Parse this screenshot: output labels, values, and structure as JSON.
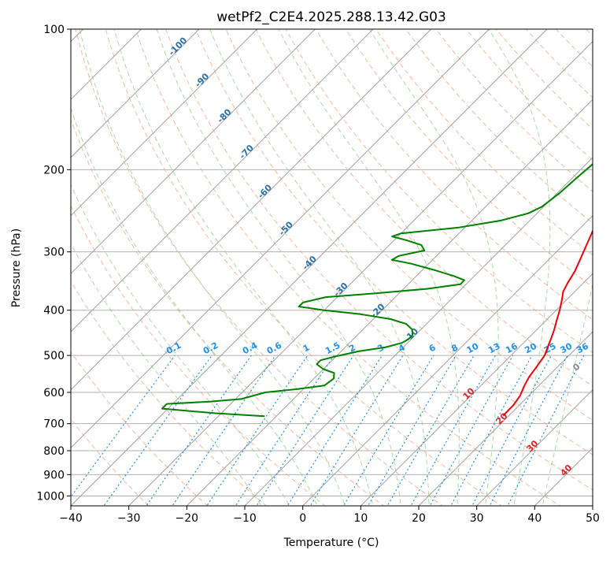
{
  "chart_data": {
    "type": "line",
    "subtype": "skew-T log-P diagram",
    "title": "wetPf2_C2E4.2025.288.13.42.G03",
    "xlabel": "Temperature (°C)",
    "ylabel": "Pressure (hPa)",
    "xlim": [
      -40,
      50
    ],
    "ylim": [
      1050,
      100
    ],
    "x_ticks": [
      -40,
      -30,
      -20,
      -10,
      0,
      10,
      20,
      30,
      40,
      50
    ],
    "x_tick_labels": [
      "−40",
      "−30",
      "−20",
      "−10",
      "0",
      "10",
      "20",
      "30",
      "40",
      "50"
    ],
    "y_ticks": [
      100,
      200,
      300,
      400,
      500,
      600,
      700,
      800,
      900,
      1000
    ],
    "y_tick_labels": [
      "100",
      "200",
      "300",
      "400",
      "500",
      "600",
      "700",
      "800",
      "900",
      "1000"
    ],
    "grid": true,
    "colors": {
      "temperature": "#e8000b",
      "dewpoint": "#008000",
      "isotherm": "#a0a0a0",
      "dry_adiabat": "#f4a582",
      "moist_adiabat": "#8fc98f",
      "mixing_ratio": "#1f8fe6",
      "isotherm_label": "#2a6fa8",
      "wet_bulb_label": "#d62728",
      "zero_label": "#8c8c8c"
    },
    "series": [
      {
        "name": "Temperature",
        "color": "#e8000b",
        "points": [
          {
            "p": 673,
            "t": 19.0
          },
          {
            "p": 640,
            "t": 19.0
          },
          {
            "p": 610,
            "t": 18.5
          },
          {
            "p": 580,
            "t": 17.5
          },
          {
            "p": 555,
            "t": 16.8
          },
          {
            "p": 530,
            "t": 16.4
          },
          {
            "p": 500,
            "t": 15.8
          },
          {
            "p": 480,
            "t": 14.9
          },
          {
            "p": 460,
            "t": 14.0
          },
          {
            "p": 440,
            "t": 13.0
          },
          {
            "p": 420,
            "t": 11.8
          },
          {
            "p": 400,
            "t": 10.6
          },
          {
            "p": 380,
            "t": 9.2
          },
          {
            "p": 365,
            "t": 8.0
          },
          {
            "p": 350,
            "t": 7.3
          },
          {
            "p": 330,
            "t": 6.5
          },
          {
            "p": 310,
            "t": 5.3
          },
          {
            "p": 290,
            "t": 4.0
          },
          {
            "p": 270,
            "t": 2.6
          },
          {
            "p": 250,
            "t": 1.3
          },
          {
            "p": 235,
            "t": 0.5
          },
          {
            "p": 220,
            "t": 0.1
          },
          {
            "p": 205,
            "t": 0.1
          },
          {
            "p": 195,
            "t": 0.4
          },
          {
            "p": 185,
            "t": 1.6
          },
          {
            "p": 175,
            "t": 3.1
          },
          {
            "p": 165,
            "t": 4.2
          },
          {
            "p": 155,
            "t": 5.2
          },
          {
            "p": 145,
            "t": 6.2
          },
          {
            "p": 135,
            "t": 7.1
          },
          {
            "p": 125,
            "t": 8.2
          },
          {
            "p": 118,
            "t": 9.2
          },
          {
            "p": 112,
            "t": 10.7
          },
          {
            "p": 106,
            "t": 12.1
          },
          {
            "p": 100,
            "t": 13.8
          }
        ]
      },
      {
        "name": "Dewpoint",
        "color": "#008000",
        "points": [
          {
            "p": 675,
            "t": -22.0
          },
          {
            "p": 665,
            "t": -31.0
          },
          {
            "p": 650,
            "t": -41.0
          },
          {
            "p": 635,
            "t": -41.0
          },
          {
            "p": 628,
            "t": -34.0
          },
          {
            "p": 620,
            "t": -29.0
          },
          {
            "p": 600,
            "t": -26.0
          },
          {
            "p": 590,
            "t": -21.0
          },
          {
            "p": 580,
            "t": -17.0
          },
          {
            "p": 560,
            "t": -16.6
          },
          {
            "p": 545,
            "t": -17.5
          },
          {
            "p": 535,
            "t": -20.0
          },
          {
            "p": 522,
            "t": -22.0
          },
          {
            "p": 512,
            "t": -22.0
          },
          {
            "p": 502,
            "t": -20.0
          },
          {
            "p": 490,
            "t": -17.0
          },
          {
            "p": 480,
            "t": -13.0
          },
          {
            "p": 470,
            "t": -11.0
          },
          {
            "p": 462,
            "t": -10.5
          },
          {
            "p": 452,
            "t": -10.5
          },
          {
            "p": 440,
            "t": -11.5
          },
          {
            "p": 428,
            "t": -13.5
          },
          {
            "p": 418,
            "t": -17.0
          },
          {
            "p": 408,
            "t": -23.0
          },
          {
            "p": 400,
            "t": -30.0
          },
          {
            "p": 393,
            "t": -35.0
          },
          {
            "p": 385,
            "t": -35.0
          },
          {
            "p": 375,
            "t": -32.0
          },
          {
            "p": 368,
            "t": -24.0
          },
          {
            "p": 360,
            "t": -16.0
          },
          {
            "p": 352,
            "t": -11.0
          },
          {
            "p": 345,
            "t": -11.0
          },
          {
            "p": 338,
            "t": -13.5
          },
          {
            "p": 328,
            "t": -18.0
          },
          {
            "p": 318,
            "t": -23.0
          },
          {
            "p": 312,
            "t": -27.0
          },
          {
            "p": 306,
            "t": -26.5
          },
          {
            "p": 298,
            "t": -23.0
          },
          {
            "p": 290,
            "t": -24.5
          },
          {
            "p": 283,
            "t": -28.0
          },
          {
            "p": 278,
            "t": -31.0
          },
          {
            "p": 274,
            "t": -30.0
          },
          {
            "p": 266,
            "t": -21.0
          },
          {
            "p": 257,
            "t": -15.0
          },
          {
            "p": 248,
            "t": -11.5
          },
          {
            "p": 240,
            "t": -10.3
          },
          {
            "p": 225,
            "t": -9.6
          },
          {
            "p": 210,
            "t": -9.3
          },
          {
            "p": 200,
            "t": -9.0
          },
          {
            "p": 180,
            "t": -8.5
          },
          {
            "p": 165,
            "t": -8.2
          },
          {
            "p": 150,
            "t": -7.6
          },
          {
            "p": 140,
            "t": -6.7
          },
          {
            "p": 130,
            "t": -5.4
          },
          {
            "p": 120,
            "t": -3.6
          },
          {
            "p": 110,
            "t": -1.7
          },
          {
            "p": 100,
            "t": 1.5
          }
        ]
      }
    ],
    "isotherm_labels": [
      {
        "t": -100,
        "p": 110,
        "text": "-100"
      },
      {
        "t": -90,
        "p": 130,
        "text": "-90"
      },
      {
        "t": -80,
        "p": 155,
        "text": "-80"
      },
      {
        "t": -70,
        "p": 185,
        "text": "-70"
      },
      {
        "t": -60,
        "p": 225,
        "text": "-60"
      },
      {
        "t": -50,
        "p": 270,
        "text": "-50"
      },
      {
        "t": -40,
        "p": 320,
        "text": "-40"
      },
      {
        "t": -30,
        "p": 365,
        "text": "-30"
      },
      {
        "t": -20,
        "p": 405,
        "text": "-20"
      },
      {
        "t": -10,
        "p": 457,
        "text": "-10"
      }
    ],
    "mixing_ratio_lines": [
      0.1,
      0.2,
      0.4,
      0.6,
      1,
      1.5,
      2,
      3,
      4,
      6,
      8,
      10,
      13,
      16,
      20,
      25,
      30,
      36
    ],
    "mixing_ratio_labels": [
      "0.1",
      "0.2",
      "0.4",
      "0.6",
      "1",
      "1.5",
      "2",
      "3",
      "4",
      "6",
      "8",
      "10",
      "13",
      "16",
      "20",
      "25",
      "30",
      "36"
    ],
    "wet_bulb_labels": [
      {
        "t": 24,
        "p": 535,
        "text": "0"
      },
      {
        "t": 10,
        "p": 610,
        "text": "10"
      },
      {
        "t": 20,
        "p": 690,
        "text": "20"
      },
      {
        "t": 30,
        "p": 790,
        "text": "30"
      },
      {
        "t": 40,
        "p": 890,
        "text": "40"
      }
    ]
  }
}
